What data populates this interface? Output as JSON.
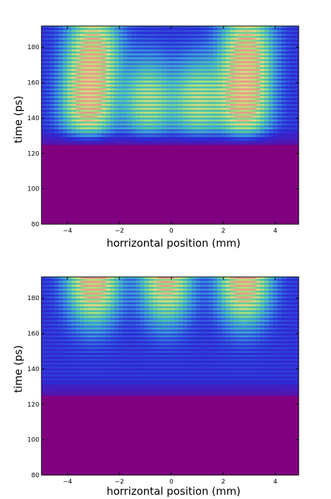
{
  "chart_data": [
    {
      "type": "heatmap",
      "title": "",
      "xlabel": "horrizontal position (mm)",
      "ylabel": "time (ps)",
      "xlim": [
        -5,
        4.9
      ],
      "ylim": [
        80,
        192
      ],
      "x_ticks": [
        "−4",
        "−2",
        "0",
        "2",
        "4"
      ],
      "y_ticks": [
        "80",
        "100",
        "120",
        "140",
        "160",
        "180"
      ],
      "x_tick_values": [
        -4,
        -2,
        0,
        2,
        4
      ],
      "y_tick_values": [
        80,
        100,
        120,
        140,
        160,
        180
      ],
      "grid": false,
      "colormap": [
        "#800080",
        "#2a2ad8",
        "#3a9ce0",
        "#52c8a0",
        "#9ee27a",
        "#e6d884",
        "#e89a8a"
      ],
      "background_color": "#800080",
      "signal_onset_ps": 125,
      "band_spacing_ps": 2.2,
      "lobes": [
        {
          "x_center": -3.2,
          "t_center": 150,
          "peak": 0.95
        },
        {
          "x_center": -0.9,
          "t_center": 150,
          "peak": 0.6
        },
        {
          "x_center": 1.0,
          "t_center": 150,
          "peak": 0.6
        },
        {
          "x_center": 2.8,
          "t_center": 150,
          "peak": 0.95
        },
        {
          "x_center": -3.0,
          "t_center": 180,
          "peak": 0.8
        },
        {
          "x_center": 2.9,
          "t_center": 180,
          "peak": 0.8
        }
      ]
    },
    {
      "type": "heatmap",
      "title": "",
      "xlabel": "horrizontal position (mm)",
      "ylabel": "time (ps)",
      "xlim": [
        -5,
        4.9
      ],
      "ylim": [
        80,
        192
      ],
      "x_ticks": [
        "−4",
        "−2",
        "0",
        "2",
        "4"
      ],
      "y_ticks": [
        "80",
        "100",
        "120",
        "140",
        "160",
        "180"
      ],
      "x_tick_values": [
        -4,
        -2,
        0,
        2,
        4
      ],
      "y_tick_values": [
        80,
        100,
        120,
        140,
        160,
        180
      ],
      "grid": false,
      "colormap": [
        "#800080",
        "#2a2ad8",
        "#3a9ce0",
        "#52c8a0",
        "#9ee27a",
        "#e6d884",
        "#e89a8a"
      ],
      "background_color": "#800080",
      "signal_onset_ps": 125,
      "band_spacing_ps": 2.2,
      "lobes": [
        {
          "x_center": -3.0,
          "t_center": 190,
          "peak": 1.0
        },
        {
          "x_center": -0.2,
          "t_center": 190,
          "peak": 0.85
        },
        {
          "x_center": 2.8,
          "t_center": 190,
          "peak": 1.0
        }
      ]
    }
  ]
}
